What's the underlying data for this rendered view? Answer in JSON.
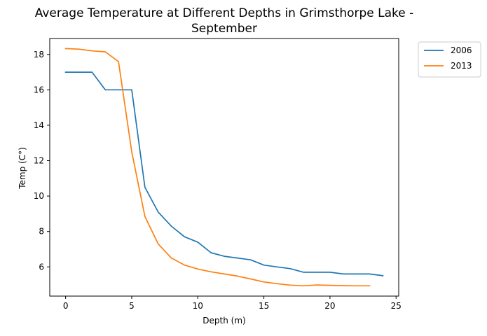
{
  "chart_data": {
    "type": "line",
    "title_lines": [
      "Average Temperature at Different Depths in Grimsthorpe Lake -",
      "September"
    ],
    "xlabel": "Depth (m)",
    "ylabel": "Temp (C°)",
    "xlim": [
      -1.2,
      25.2
    ],
    "ylim": [
      4.35,
      18.9
    ],
    "xticks": [
      0,
      5,
      10,
      15,
      20,
      25
    ],
    "yticks": [
      6,
      8,
      10,
      12,
      14,
      16,
      18
    ],
    "grid": false,
    "legend_position": "outside top-right",
    "series": [
      {
        "name": "2006",
        "color": "#1f77b4",
        "x": [
          0,
          1,
          2,
          3,
          4,
          5,
          6,
          7,
          8,
          9,
          10,
          11,
          12,
          13,
          14,
          15,
          16,
          17,
          18,
          19,
          20,
          21,
          22,
          23,
          24
        ],
        "y": [
          17.0,
          17.0,
          17.0,
          16.0,
          16.0,
          16.0,
          10.5,
          9.1,
          8.3,
          7.7,
          7.4,
          6.8,
          6.6,
          6.5,
          6.4,
          6.1,
          6.0,
          5.9,
          5.7,
          5.7,
          5.7,
          5.6,
          5.6,
          5.6,
          5.5
        ]
      },
      {
        "name": "2013",
        "color": "#ff7f0e",
        "x": [
          0,
          1,
          2,
          3,
          4,
          5,
          6,
          7,
          8,
          9,
          10,
          11,
          12,
          13,
          14,
          15,
          16,
          17,
          18,
          19,
          20,
          21,
          22,
          23
        ],
        "y": [
          18.33,
          18.3,
          18.2,
          18.15,
          17.6,
          12.5,
          8.85,
          7.3,
          6.5,
          6.1,
          5.88,
          5.72,
          5.6,
          5.48,
          5.32,
          5.15,
          5.05,
          4.97,
          4.93,
          4.98,
          4.96,
          4.94,
          4.93,
          4.93
        ]
      }
    ]
  }
}
